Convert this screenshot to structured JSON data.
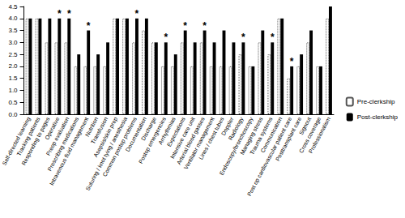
{
  "chart_data": {
    "type": "bar",
    "categories": [
      "Self-directed learning",
      "Tracking patients",
      "Responding to pages",
      "Operative",
      "Preop evaluation",
      "Prescribing medications",
      "Intravenous fluid management",
      "Nutrition",
      "Transfusion",
      "Asepsis/skin prep",
      "Suturing / knot tying / anesthesia",
      "Common postop problems",
      "Documentation",
      "Discharge",
      "Postop emergencies",
      "Arrhythmias",
      "Expectations",
      "Intensive care unit",
      "Arterial blood gasses",
      "Ventilator management",
      "Lines / chest tubes",
      "Doppler",
      "Radiology",
      "Endoscopy/bronchoscopy",
      "Managing stress",
      "Trauma systems",
      "Communication",
      "Post op cardiovascular patient care",
      "Posttransplant care",
      "Signout",
      "Cross coverage",
      "Professionalism"
    ],
    "series": [
      {
        "name": "Pre-clerkship",
        "color": "#ffffff",
        "line_style": "dotted",
        "values": [
          4,
          4,
          3,
          3,
          3,
          2,
          2,
          2,
          2,
          4,
          4,
          3,
          3.5,
          3,
          2,
          2,
          3,
          2,
          3,
          2,
          2,
          2,
          2.5,
          2,
          3,
          2.5,
          4,
          1.5,
          2,
          3,
          2,
          4
        ]
      },
      {
        "name": "Post-clerkship",
        "color": "#000000",
        "values": [
          4,
          4,
          4,
          4,
          4,
          2.5,
          3.5,
          2.5,
          3,
          4,
          4,
          4,
          4,
          3,
          3,
          2.5,
          3.5,
          3,
          3.5,
          3,
          3.5,
          3,
          3,
          2,
          3.5,
          3,
          4,
          2,
          2.5,
          3.5,
          2,
          4.5
        ]
      }
    ],
    "annotations": [
      {
        "category": "Operative",
        "text": "*"
      },
      {
        "category": "Preop evaluation",
        "text": "*"
      },
      {
        "category": "Intravenous fluid management",
        "text": "*"
      },
      {
        "category": "Common postop problems",
        "text": "*"
      },
      {
        "category": "Postop emergencies",
        "text": "*"
      },
      {
        "category": "Expectations",
        "text": "*"
      },
      {
        "category": "Arterial blood gasses",
        "text": "*"
      },
      {
        "category": "Radiology",
        "text": "*"
      },
      {
        "category": "Trauma systems",
        "text": "*"
      },
      {
        "category": "Post op cardiovascular patient care",
        "text": "*"
      }
    ],
    "ylim": [
      0,
      4.5
    ],
    "yticks": [
      {
        "value": 0,
        "label": "0.0"
      },
      0.5,
      {
        "value": 1,
        "label": "1.0"
      },
      1.5,
      {
        "value": 2,
        "label": "2.0"
      },
      2.5,
      {
        "value": 3,
        "label": "3.0"
      },
      3.5,
      {
        "value": 4,
        "label": "4.0"
      },
      4.5
    ],
    "grid": false,
    "legend": "right"
  }
}
